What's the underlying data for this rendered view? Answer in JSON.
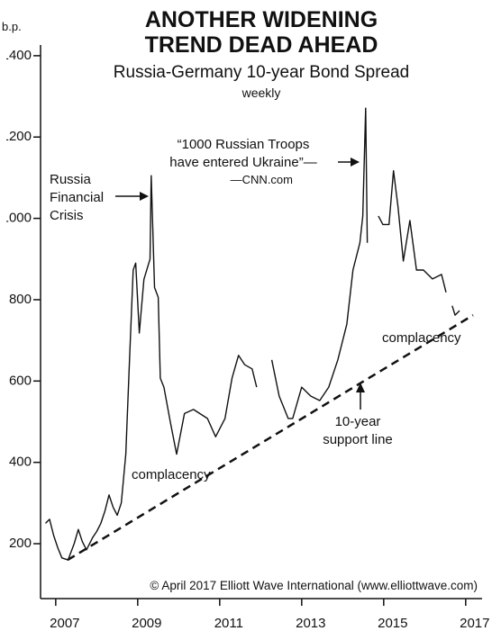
{
  "chart_data": {
    "type": "line",
    "title": [
      "ANOTHER WIDENING",
      "TREND DEAD AHEAD"
    ],
    "subtitle": "Russia-Germany 10-year Bond Spread",
    "frequency": "weekly",
    "y_label": "b.p.",
    "annotations": {
      "crisis": [
        "Russia",
        "Financial",
        "Crisis"
      ],
      "quote": [
        "“1000 Russian Troops",
        "have entered Ukraine”—",
        "—CNN.com"
      ],
      "complacency_left": "complacency",
      "complacency_right": "complacency",
      "support": [
        "10-year",
        "support line"
      ],
      "copyright": "© April 2017 Elliott Wave International (www.elliottwave.com)"
    },
    "xlim": [
      2006.63,
      2017.4
    ],
    "xticks": [
      2007,
      2009,
      2011,
      2013,
      2015,
      2017
    ],
    "ylim": [
      65,
      1537
    ],
    "yticks": [
      200,
      400,
      600,
      800,
      1000,
      1200,
      1400
    ],
    "series": [
      {
        "name": "Russia-Germany 10-year Bond Spread",
        "color": "#111111",
        "x": [
          2006.75,
          2006.85,
          2006.95,
          2007.05,
          2007.15,
          2007.3,
          2007.45,
          2007.55,
          2007.65,
          2007.75,
          2007.9,
          2008.0,
          2008.1,
          2008.2,
          2008.3,
          2008.4,
          2008.5,
          2008.6,
          2008.71,
          2008.8,
          2008.89,
          2008.95,
          2009.04,
          2009.15,
          2009.3,
          2009.33,
          2009.41,
          2009.5,
          2009.55,
          2009.64,
          2009.8,
          2009.95,
          2010.14,
          2010.36,
          2010.7,
          2010.9,
          2011.13,
          2011.3,
          2011.46,
          2011.61,
          2011.79,
          2011.9,
          2012.0,
          2012.27,
          2012.45,
          2012.67,
          2012.78,
          2013.0,
          2013.22,
          2013.44,
          2013.66,
          2013.88,
          2014.1,
          2014.25,
          2014.42,
          2014.49,
          2014.56,
          2014.6,
          2014.7,
          2014.87,
          2014.98,
          2015.13,
          2015.24,
          2015.35,
          2015.48,
          2015.64,
          2015.8,
          2015.97,
          2016.19,
          2016.41,
          2016.52,
          2016.6,
          2016.67,
          2016.74,
          2016.85
        ],
        "values": [
          250,
          260,
          220,
          190,
          165,
          160,
          200,
          235,
          205,
          185,
          215,
          230,
          250,
          280,
          320,
          290,
          270,
          300,
          420,
          650,
          873,
          890,
          718,
          850,
          900,
          1105,
          830,
          806,
          607,
          585,
          497,
          420,
          520,
          530,
          508,
          463,
          508,
          607,
          663,
          640,
          630,
          585,
          null,
          652,
          563,
          508,
          508,
          585,
          563,
          552,
          585,
          652,
          740,
          873,
          940,
          1006,
          1271,
          940,
          null,
          1006,
          985,
          985,
          1117,
          1028,
          895,
          995,
          873,
          873,
          851,
          862,
          818,
          null,
          785,
          762,
          773
        ]
      }
    ],
    "support_line": {
      "x": [
        2007.29,
        2017.18
      ],
      "values": [
        160,
        762
      ]
    }
  }
}
